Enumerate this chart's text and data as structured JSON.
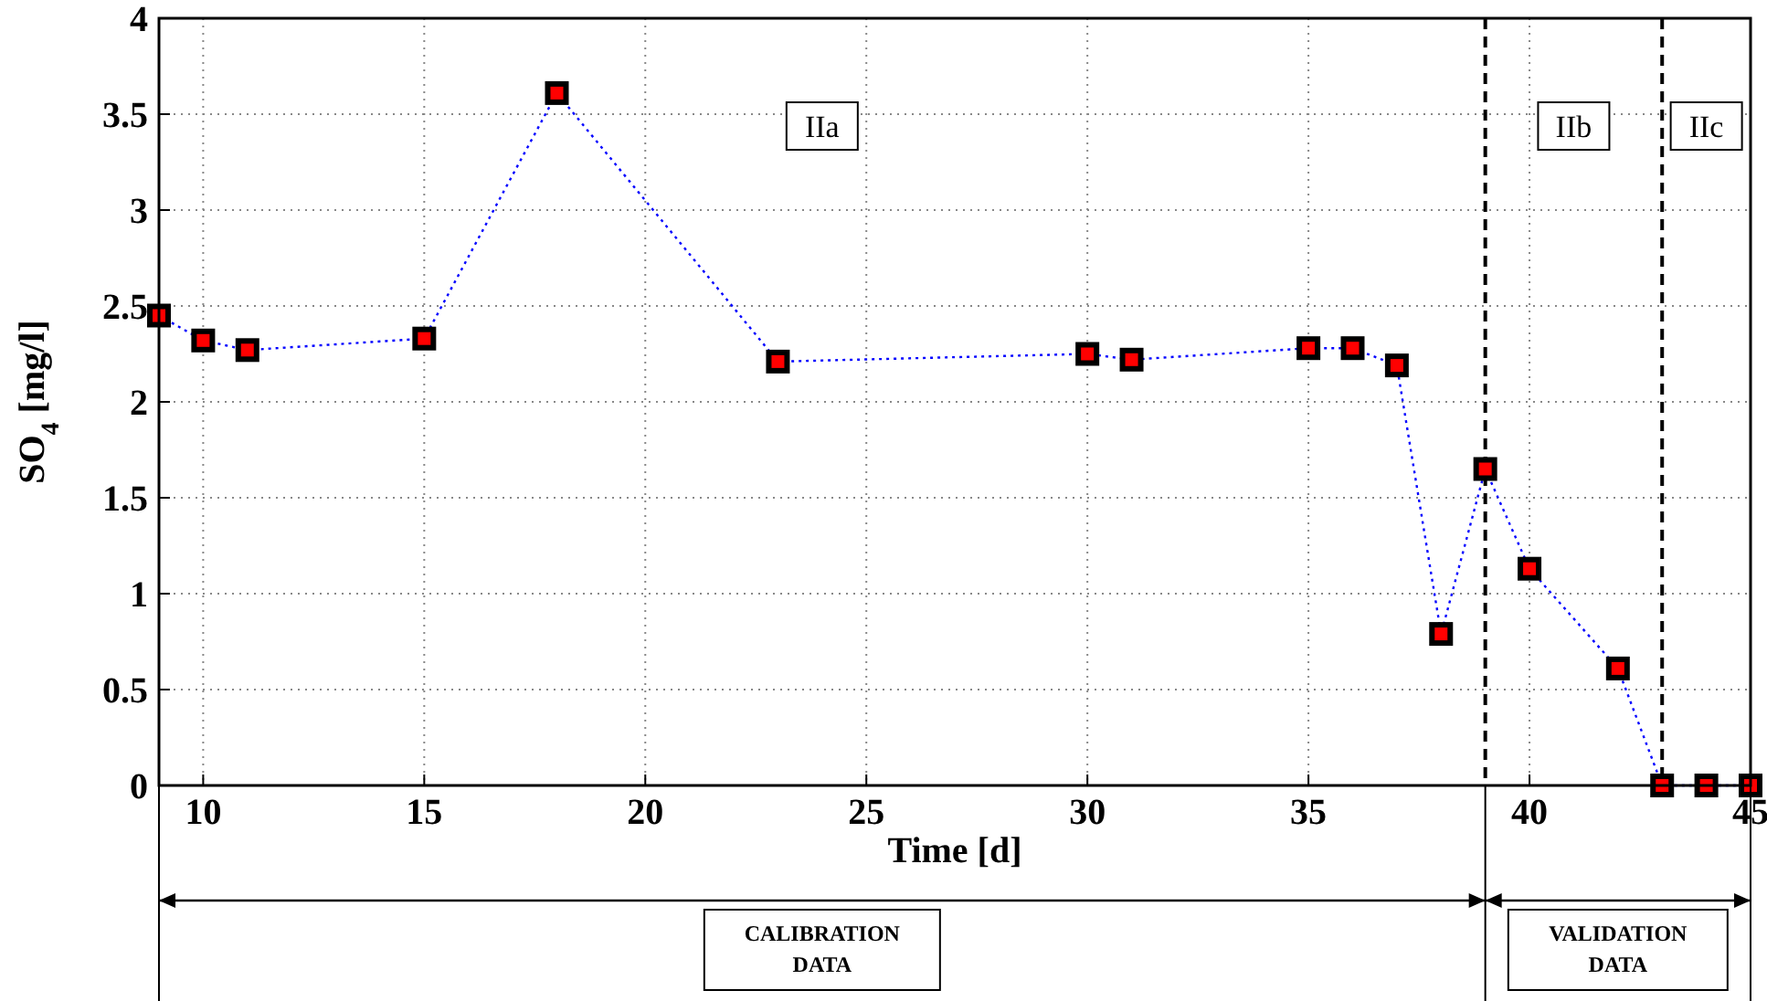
{
  "chart_data": {
    "type": "line",
    "xlabel": "Time [d]",
    "ylabel": "SO$_{4}$ [mg/l]",
    "x": [
      9,
      10,
      11,
      15,
      18,
      23,
      30,
      31,
      35,
      36,
      37,
      38,
      39,
      40,
      42,
      43,
      44,
      45
    ],
    "series": [
      {
        "color": "#0000ff",
        "values": [
          2.45,
          2.32,
          2.27,
          2.33,
          3.61,
          2.21,
          2.25,
          2.22,
          2.28,
          2.28,
          2.19,
          0.79,
          1.65,
          1.13,
          0.61,
          0,
          0,
          0
        ]
      }
    ],
    "xlim": [
      9,
      45
    ],
    "xticks": [
      10,
      15,
      20,
      25,
      30,
      35,
      40,
      45
    ],
    "ylim": [
      0,
      4
    ],
    "yticks": [
      0,
      0.5,
      1,
      1.5,
      2,
      2.5,
      3,
      3.5,
      4
    ],
    "grid": true,
    "marker": "square",
    "line_style": "dotted",
    "ref_lines": [
      {
        "axis": "x",
        "value": 39,
        "line_style": "dashed",
        "color": "#000000"
      },
      {
        "axis": "x",
        "value": 43,
        "line_style": "dashed",
        "color": "#000000"
      }
    ],
    "annotations": [
      "IIa",
      "IIb",
      "IIc",
      "CALIBRATION\nDATA",
      "VALIDATION\nDATA"
    ]
  }
}
